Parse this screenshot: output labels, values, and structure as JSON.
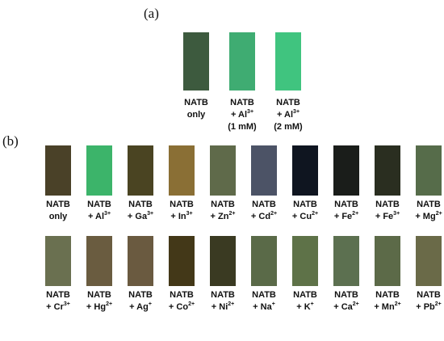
{
  "panel_a": {
    "label": "(a)",
    "samples": [
      {
        "color": "#3d5a3e",
        "lines": [
          "NATB",
          "only"
        ]
      },
      {
        "color": "#3fac72",
        "lines": [
          "NATB",
          {
            "text": "+ Al",
            "sup": "3+"
          },
          "(1 mM)"
        ]
      },
      {
        "color": "#40c47f",
        "lines": [
          "NATB",
          {
            "text": "+ Al",
            "sup": "3+"
          },
          "(2 mM)"
        ]
      }
    ]
  },
  "panel_b": {
    "label": "(b)",
    "rows": [
      [
        {
          "color": "#4a4128",
          "lines": [
            "NATB",
            "only"
          ]
        },
        {
          "color": "#3cb46a",
          "lines": [
            "NATB",
            {
              "text": "+ Al",
              "sup": "3+"
            }
          ]
        },
        {
          "color": "#4a4422",
          "lines": [
            "NATB",
            {
              "text": "+ Ga",
              "sup": "3+"
            }
          ]
        },
        {
          "color": "#8a6f35",
          "lines": [
            "NATB",
            {
              "text": "+ In",
              "sup": "3+"
            }
          ]
        },
        {
          "color": "#5f6a4a",
          "lines": [
            "NATB",
            {
              "text": "+ Zn",
              "sup": "2+"
            }
          ]
        },
        {
          "color": "#4c5366",
          "lines": [
            "NATB",
            {
              "text": "+ Cd",
              "sup": "2+"
            }
          ]
        },
        {
          "color": "#0f1520",
          "lines": [
            "NATB",
            {
              "text": "+ Cu",
              "sup": "2+"
            }
          ]
        },
        {
          "color": "#1a1d1a",
          "lines": [
            "NATB",
            {
              "text": "+ Fe",
              "sup": "2+"
            }
          ]
        },
        {
          "color": "#2a2e20",
          "lines": [
            "NATB",
            {
              "text": "+ Fe",
              "sup": "3+"
            }
          ]
        },
        {
          "color": "#566c4a",
          "lines": [
            "NATB",
            {
              "text": "+ Mg",
              "sup": "2+"
            }
          ]
        }
      ],
      [
        {
          "color": "#6a7050",
          "lines": [
            "NATB",
            {
              "text": "+ Cr",
              "sup": "3+"
            }
          ]
        },
        {
          "color": "#6a5c40",
          "lines": [
            "NATB",
            {
              "text": "+ Hg",
              "sup": "2+"
            }
          ]
        },
        {
          "color": "#6a5a40",
          "lines": [
            "NATB",
            {
              "text": "+ Ag",
              "sup": "+"
            }
          ]
        },
        {
          "color": "#433818",
          "lines": [
            "NATB",
            {
              "text": "+ Co",
              "sup": "2+"
            }
          ]
        },
        {
          "color": "#3a3a22",
          "lines": [
            "NATB",
            {
              "text": "+ Ni",
              "sup": "2+"
            }
          ]
        },
        {
          "color": "#5a6a48",
          "lines": [
            "NATB",
            {
              "text": "+ Na",
              "sup": "+"
            }
          ]
        },
        {
          "color": "#5e7248",
          "lines": [
            "NATB",
            {
              "text": "+ K",
              "sup": "+"
            }
          ]
        },
        {
          "color": "#5c7050",
          "lines": [
            "NATB",
            {
              "text": "+ Ca",
              "sup": "2+"
            }
          ]
        },
        {
          "color": "#5c6a48",
          "lines": [
            "NATB",
            {
              "text": "+ Mn",
              "sup": "2+"
            }
          ]
        },
        {
          "color": "#6a6a48",
          "lines": [
            "NATB",
            {
              "text": "+ Pb",
              "sup": "2+"
            }
          ]
        }
      ]
    ]
  }
}
